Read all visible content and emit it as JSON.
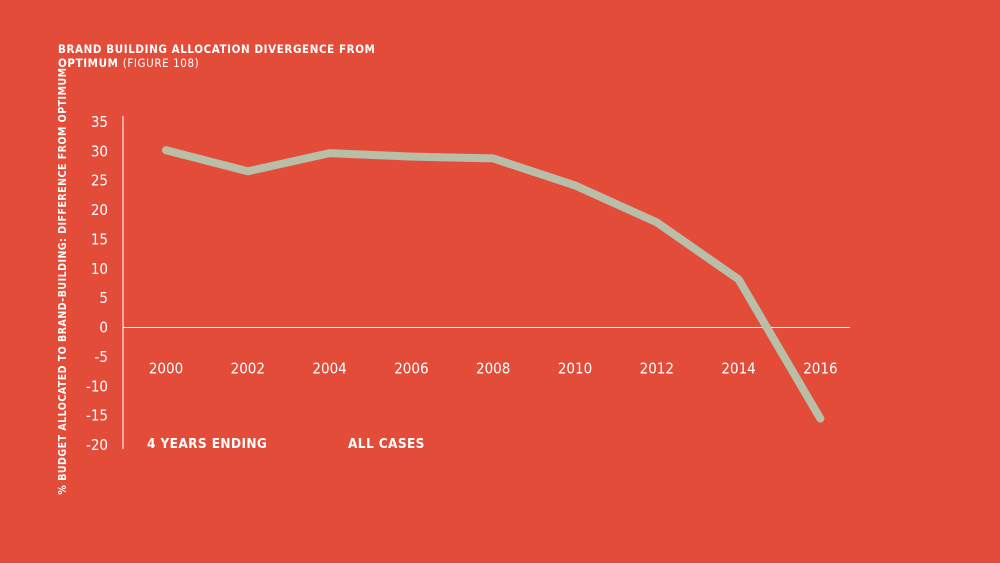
{
  "chart_data": {
    "type": "line",
    "title": "BRAND BUILDING ALLOCATION DIVERGENCE FROM OPTIMUM",
    "title_suffix": "(FIGURE 108)",
    "ylabel": "% BUDGET ALLOCATED TO BRAND-BUILDING: DIFFERENCE FROM OPTIMUM",
    "xlabel": "4 YEARS ENDING",
    "x": [
      "2000",
      "2002",
      "2004",
      "2006",
      "2008",
      "2010",
      "2012",
      "2014",
      "2016"
    ],
    "series": [
      {
        "name": "ALL CASES",
        "values": [
          30.2,
          26.6,
          29.7,
          29.1,
          28.8,
          24.2,
          17.9,
          8.2,
          -15.5
        ],
        "color": "#B8BEA8"
      }
    ],
    "ylim": [
      -20,
      35
    ],
    "yticks": [
      "35",
      "30",
      "25",
      "20",
      "15",
      "10",
      "5",
      "0",
      "-5",
      "-10",
      "-15",
      "-20"
    ],
    "grid": false,
    "background": "#E44C3A",
    "axis_color": "#FFFFFF"
  }
}
